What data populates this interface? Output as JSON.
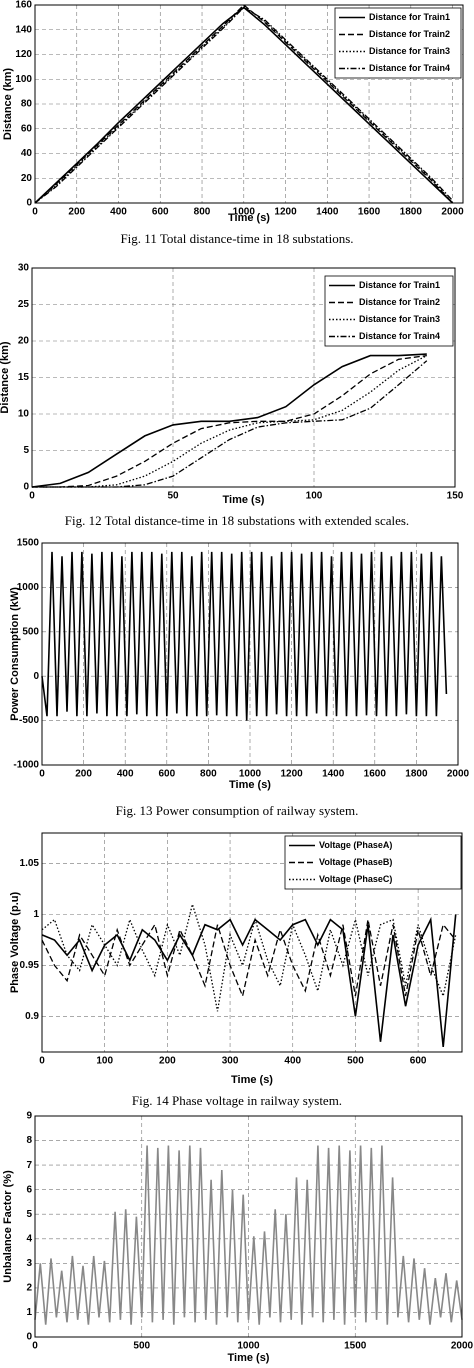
{
  "chart_data": [
    {
      "type": "line",
      "xlabel": "Time (s)",
      "ylabel": "Distance (km)",
      "caption": "Fig. 11 Total distance-time in 18 substations.",
      "x": [
        0,
        100,
        200,
        300,
        400,
        500,
        600,
        700,
        800,
        900,
        1000,
        1100,
        1200,
        1300,
        1400,
        1500,
        1600,
        1700,
        1800,
        1900,
        2000
      ],
      "series": [
        {
          "name": "Distance for Train1",
          "color": "#000000",
          "dash": "solid",
          "values": [
            0,
            16,
            32,
            48,
            65,
            81,
            97,
            113,
            129,
            145,
            158,
            144,
            128,
            112,
            96,
            80,
            64,
            48,
            32,
            16,
            0
          ]
        },
        {
          "name": "Distance for Train2",
          "color": "#000000",
          "dash": "dashed",
          "values": [
            0,
            15,
            31,
            47,
            63,
            79,
            95,
            111,
            127,
            143,
            160,
            146,
            130,
            114,
            98,
            82,
            66,
            50,
            34,
            18,
            0
          ]
        },
        {
          "name": "Distance for Train3",
          "color": "#000000",
          "dash": "dotted",
          "values": [
            0,
            14,
            30,
            46,
            62,
            78,
            94,
            110,
            126,
            142,
            159,
            147,
            131,
            115,
            99,
            83,
            67,
            51,
            35,
            19,
            0
          ]
        },
        {
          "name": "Distance for Train4",
          "color": "#000000",
          "dash": "dashdot",
          "values": [
            0,
            13,
            29,
            45,
            61,
            77,
            93,
            109,
            125,
            141,
            158,
            148,
            132,
            116,
            100,
            84,
            68,
            52,
            36,
            20,
            2
          ]
        }
      ],
      "xlim": [
        0,
        2050
      ],
      "xticks": [
        0,
        200,
        400,
        600,
        800,
        1000,
        1200,
        1400,
        1600,
        1800,
        2000
      ],
      "ylim": [
        0,
        160
      ],
      "yticks": [
        0,
        20,
        40,
        60,
        80,
        100,
        120,
        140,
        160
      ],
      "grid": true,
      "legend": "upper right"
    },
    {
      "type": "line",
      "xlabel": "Time (s)",
      "ylabel": "Distance (km)",
      "caption": "Fig. 12 Total distance-time in 18 substations with extended scales.",
      "x": [
        0,
        10,
        20,
        30,
        40,
        50,
        60,
        70,
        80,
        90,
        100,
        110,
        120,
        130,
        140
      ],
      "series": [
        {
          "name": "Distance for Train1",
          "color": "#000000",
          "dash": "solid",
          "values": [
            0,
            0.5,
            2,
            4.5,
            7,
            8.5,
            9,
            9,
            9.5,
            11,
            14,
            16.5,
            18,
            18,
            18.2
          ]
        },
        {
          "name": "Distance for Train2",
          "color": "#000000",
          "dash": "dashed",
          "values": [
            0,
            0,
            0.2,
            1.5,
            3.5,
            6,
            8,
            8.8,
            9,
            9,
            10,
            12.5,
            15.5,
            17.5,
            18
          ]
        },
        {
          "name": "Distance for Train3",
          "color": "#000000",
          "dash": "dotted",
          "values": [
            0,
            0,
            0,
            0.3,
            1.5,
            3.5,
            6,
            7.8,
            8.8,
            9,
            9.2,
            10.5,
            13,
            16,
            18
          ]
        },
        {
          "name": "Distance for Train4",
          "color": "#000000",
          "dash": "dashdot",
          "values": [
            0,
            0,
            0,
            0,
            0.3,
            1.5,
            4,
            6.5,
            8.2,
            8.8,
            9,
            9.2,
            10.8,
            14,
            17.3
          ]
        }
      ],
      "xlim": [
        0,
        150
      ],
      "xticks": [
        0,
        50,
        100,
        150
      ],
      "ylim": [
        0,
        30
      ],
      "yticks": [
        0,
        5,
        10,
        15,
        20,
        25,
        30
      ],
      "grid": true,
      "legend": "upper right"
    },
    {
      "type": "line",
      "xlabel": "Time (s)",
      "ylabel": "Power Consumption (kW)",
      "caption": "Fig. 13 Power consumption of railway system.",
      "x": [
        0,
        24,
        48,
        72,
        96,
        120,
        144,
        168,
        192,
        216,
        240,
        264,
        288,
        312,
        336,
        360,
        384,
        408,
        432,
        456,
        480,
        504,
        528,
        552,
        576,
        600,
        624,
        648,
        672,
        696,
        720,
        744,
        768,
        792,
        816,
        840,
        864,
        888,
        912,
        936,
        960,
        984,
        1008,
        1032,
        1056,
        1080,
        1104,
        1128,
        1152,
        1176,
        1200,
        1224,
        1248,
        1272,
        1296,
        1320,
        1344,
        1368,
        1392,
        1416,
        1440,
        1464,
        1488,
        1512,
        1536,
        1560,
        1584,
        1608,
        1632,
        1656,
        1680,
        1704,
        1728,
        1752,
        1776,
        1800,
        1824,
        1848,
        1872,
        1896,
        1920,
        1944
      ],
      "series": [
        {
          "color": "#000000",
          "dash": "solid",
          "values": [
            0,
            -450,
            1400,
            -450,
            1350,
            -400,
            1400,
            -450,
            1400,
            -450,
            1380,
            -420,
            1400,
            -450,
            1400,
            -450,
            1350,
            -450,
            1400,
            -430,
            1400,
            -450,
            1400,
            -450,
            1380,
            -450,
            1400,
            -420,
            1400,
            -450,
            1350,
            -450,
            1400,
            -450,
            1400,
            -440,
            1400,
            -450,
            1380,
            -450,
            1400,
            -500,
            1400,
            -450,
            1400,
            -450,
            1350,
            -430,
            1400,
            -450,
            1400,
            -450,
            1380,
            -450,
            1400,
            -420,
            1400,
            -450,
            1350,
            -450,
            1400,
            -450,
            1400,
            -450,
            1380,
            -440,
            1400,
            -450,
            1400,
            -450,
            1350,
            -450,
            1400,
            -430,
            1400,
            -450,
            1380,
            -450,
            1400,
            -450,
            1350,
            -200
          ]
        }
      ],
      "xlim": [
        0,
        2000
      ],
      "xticks": [
        0,
        200,
        400,
        600,
        800,
        1000,
        1200,
        1400,
        1600,
        1800,
        2000
      ],
      "ylim": [
        -1000,
        1500
      ],
      "yticks": [
        -1000,
        -500,
        0,
        500,
        1000,
        1500
      ],
      "grid": true
    },
    {
      "type": "line",
      "xlabel": "Time (s)",
      "ylabel": "Phase Voltage (p.u)",
      "caption": "Fig. 14 Phase voltage in railway system.",
      "x": [
        0,
        20,
        40,
        60,
        80,
        100,
        120,
        140,
        160,
        180,
        200,
        220,
        240,
        260,
        280,
        300,
        320,
        340,
        360,
        380,
        400,
        420,
        440,
        460,
        480,
        500,
        520,
        540,
        560,
        580,
        600,
        620,
        640,
        660
      ],
      "series": [
        {
          "name": "Voltage (PhaseA)",
          "color": "#000000",
          "dash": "solid",
          "values": [
            0.98,
            0.975,
            0.96,
            0.975,
            0.945,
            0.97,
            0.98,
            0.955,
            0.985,
            0.975,
            0.955,
            0.98,
            0.96,
            0.99,
            0.985,
            0.995,
            0.97,
            0.995,
            0.985,
            0.975,
            0.99,
            0.995,
            0.97,
            0.995,
            0.985,
            0.9,
            0.99,
            0.875,
            0.98,
            0.91,
            0.97,
            0.995,
            0.87,
            1.0
          ]
        },
        {
          "name": "Voltage (PhaseB)",
          "color": "#000000",
          "dash": "dashed",
          "values": [
            0.975,
            0.95,
            0.935,
            0.98,
            0.96,
            0.94,
            0.985,
            0.95,
            0.97,
            0.99,
            0.94,
            0.985,
            0.96,
            0.93,
            0.99,
            0.95,
            0.92,
            0.975,
            0.94,
            0.985,
            0.95,
            0.925,
            0.98,
            0.94,
            0.99,
            0.92,
            0.995,
            0.93,
            0.99,
            0.92,
            0.985,
            0.94,
            0.99,
            0.975
          ]
        },
        {
          "name": "Voltage (PhaseC)",
          "color": "#000000",
          "dash": "dotted",
          "values": [
            0.985,
            0.995,
            0.96,
            0.945,
            0.99,
            0.97,
            0.95,
            0.995,
            0.965,
            0.94,
            0.99,
            0.96,
            1.01,
            0.97,
            0.905,
            0.98,
            0.95,
            0.995,
            0.955,
            0.93,
            0.99,
            0.96,
            0.925,
            0.985,
            0.95,
            0.995,
            0.94,
            0.99,
            0.995,
            0.93,
            0.99,
            0.95,
            0.92,
            0.98
          ]
        }
      ],
      "xlim": [
        0,
        670
      ],
      "xticks": [
        0,
        100,
        200,
        300,
        400,
        500,
        600
      ],
      "ylim": [
        0.865,
        1.08
      ],
      "yticks": [
        0.9,
        0.95,
        1,
        1.05
      ],
      "grid": true,
      "legend": "upper right"
    },
    {
      "type": "line",
      "xlabel": "Time (s)",
      "ylabel": "Unbalance Factor (%)",
      "x": [
        0,
        25,
        50,
        75,
        100,
        125,
        150,
        175,
        200,
        225,
        250,
        275,
        300,
        325,
        350,
        375,
        400,
        425,
        450,
        475,
        500,
        525,
        550,
        575,
        600,
        625,
        650,
        675,
        700,
        725,
        750,
        775,
        800,
        825,
        850,
        875,
        900,
        925,
        950,
        975,
        1000,
        1025,
        1050,
        1075,
        1100,
        1125,
        1150,
        1175,
        1200,
        1225,
        1250,
        1275,
        1300,
        1325,
        1350,
        1375,
        1400,
        1425,
        1450,
        1475,
        1500,
        1525,
        1550,
        1575,
        1600,
        1625,
        1650,
        1675,
        1700,
        1725,
        1750,
        1775,
        1800,
        1825,
        1850,
        1875,
        1900,
        1925,
        1950,
        1975,
        2000
      ],
      "series": [
        {
          "color": "#888888",
          "dash": "solid",
          "values": [
            0.7,
            3.0,
            0.5,
            3.2,
            0.8,
            2.7,
            0.6,
            3.3,
            0.7,
            2.9,
            0.5,
            3.3,
            0.8,
            3.1,
            0.6,
            5.1,
            0.7,
            5.2,
            0.5,
            4.9,
            0.8,
            7.8,
            0.6,
            7.7,
            0.7,
            7.8,
            0.5,
            7.6,
            0.8,
            7.8,
            0.6,
            7.7,
            0.7,
            6.4,
            0.5,
            6.8,
            0.8,
            6.0,
            0.6,
            5.8,
            0.7,
            4.1,
            0.5,
            4.3,
            0.8,
            5.2,
            0.6,
            5.0,
            0.7,
            6.5,
            0.5,
            6.4,
            0.8,
            7.8,
            0.6,
            7.7,
            0.7,
            7.8,
            0.5,
            7.6,
            0.8,
            7.8,
            0.6,
            7.7,
            0.7,
            7.8,
            0.5,
            6.5,
            0.8,
            3.3,
            0.6,
            3.2,
            0.7,
            2.8,
            0.5,
            2.4,
            0.8,
            2.6,
            0.6,
            2.3,
            0.7
          ]
        }
      ],
      "xlim": [
        0,
        2000
      ],
      "xticks": [
        0,
        500,
        1000,
        1500,
        2000
      ],
      "ylim": [
        0,
        9
      ],
      "yticks": [
        0,
        1,
        2,
        3,
        4,
        5,
        6,
        7,
        8,
        9
      ],
      "grid": true
    }
  ]
}
